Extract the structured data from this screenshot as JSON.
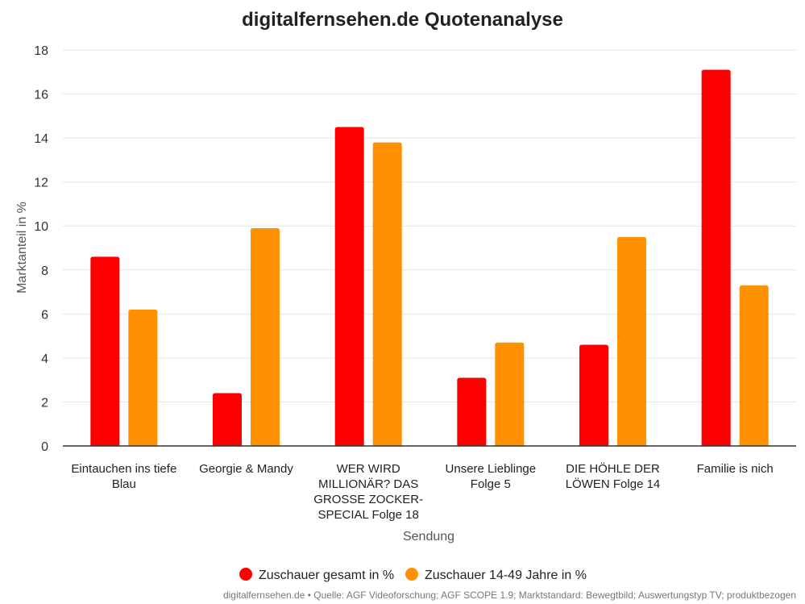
{
  "chart_data": {
    "type": "bar",
    "title": "digitalfernsehen.de Quotenanalyse",
    "xlabel": "Sendung",
    "ylabel": "Marktanteil in %",
    "ylim": [
      0,
      18
    ],
    "yticks": [
      0,
      2,
      4,
      6,
      8,
      10,
      12,
      14,
      16,
      18
    ],
    "grid": true,
    "legend_position": "bottom",
    "categories": [
      "Eintauchen ins tiefe Blau",
      "Georgie & Mandy",
      "WER WIRD MILLIONÄR? DAS GROSSE ZOCKER-SPECIAL Folge 18",
      "Unsere Lieblinge Folge 5",
      "DIE HÖHLE DER LÖWEN Folge 14",
      "Familie is nich"
    ],
    "category_label_lines": [
      [
        "Eintauchen ins tiefe",
        "Blau"
      ],
      [
        "Georgie & Mandy"
      ],
      [
        "WER WIRD",
        "MILLIONÄR? DAS",
        "GROSSE ZOCKER-",
        "SPECIAL Folge 18"
      ],
      [
        "Unsere Lieblinge",
        "Folge 5"
      ],
      [
        "DIE HÖHLE DER",
        "LÖWEN Folge 14"
      ],
      [
        "Familie is nich"
      ]
    ],
    "series": [
      {
        "name": "Zuschauer gesamt in %",
        "color": "#ff0000",
        "values": [
          8.6,
          2.4,
          14.5,
          3.1,
          4.6,
          17.1
        ]
      },
      {
        "name": "Zuschauer 14-49 Jahre in %",
        "color": "#ff9000",
        "values": [
          6.2,
          9.9,
          13.8,
          4.7,
          9.5,
          7.3
        ]
      }
    ],
    "source": "digitalfernsehen.de • Quelle: AGF Videoforschung; AGF SCOPE 1.9; Marktstandard: Bewegtbild; Auswertungstyp TV; produktbezogen"
  }
}
